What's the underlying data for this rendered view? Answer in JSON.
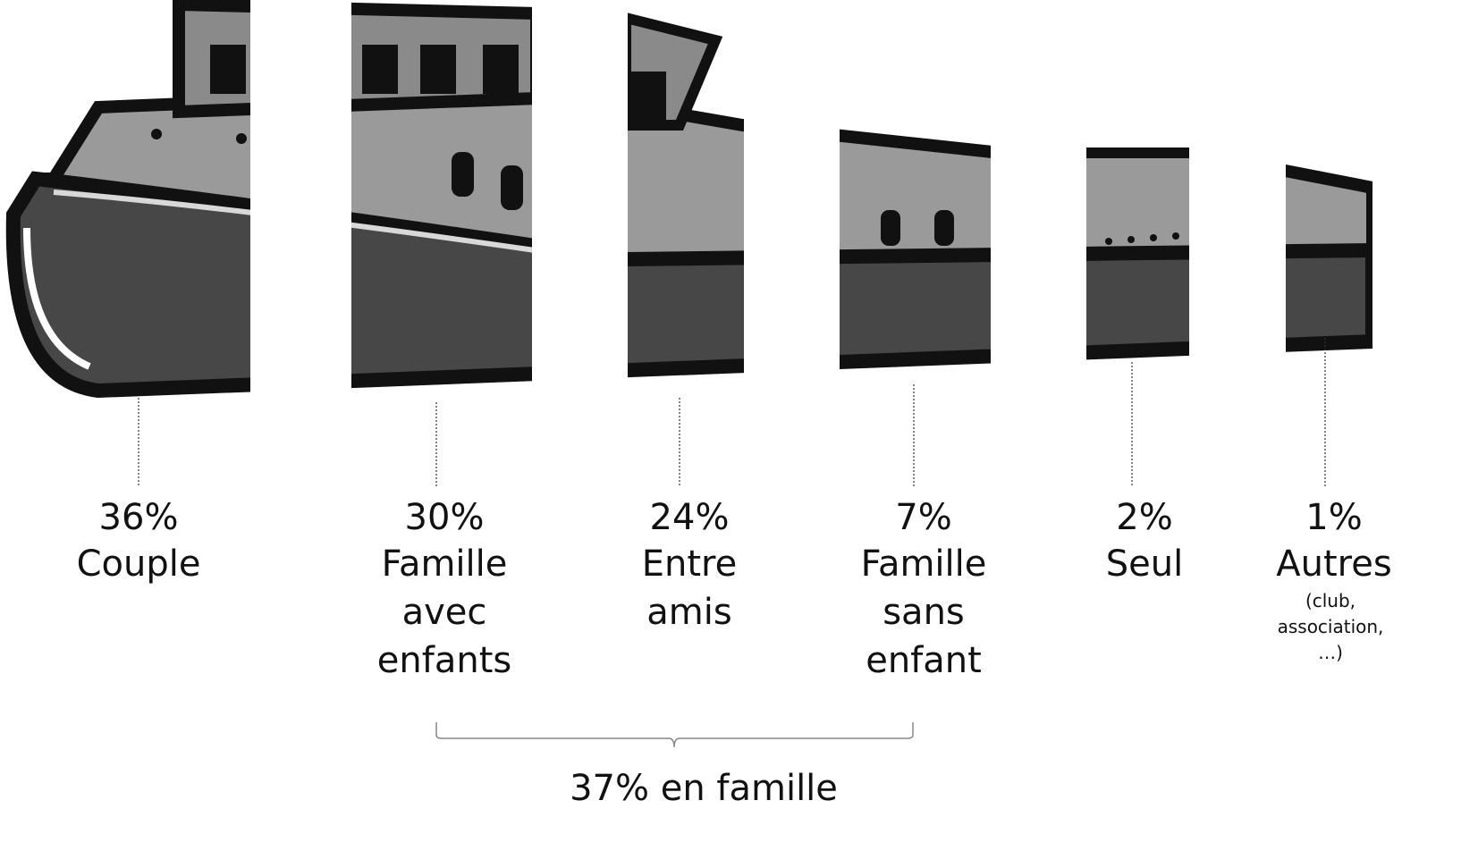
{
  "chart_data": {
    "type": "pictogram",
    "categories": [
      "Couple",
      "Famille avec enfants",
      "Entre amis",
      "Famille sans enfant",
      "Seul",
      "Autres"
    ],
    "values": [
      36,
      30,
      24,
      7,
      2,
      1
    ],
    "value_labels": [
      "36%",
      "30%",
      "24%",
      "7%",
      "2%",
      "1%"
    ],
    "annotations": [
      {
        "text": "(club, association, …)"
      },
      {
        "text": "37% en famille"
      }
    ]
  }
}
